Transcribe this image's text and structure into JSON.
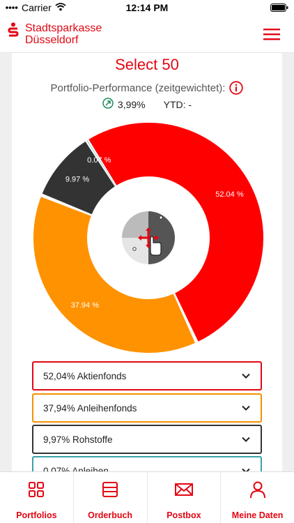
{
  "status_bar": {
    "carrier": "Carrier",
    "time": "12:14 PM"
  },
  "header": {
    "brand_line1": "Stadtsparkasse",
    "brand_line2": "Düsseldorf"
  },
  "fund": {
    "title": "Select 50",
    "performance_label": "Portfolio-Performance (zeitgewichtet):",
    "performance_value": "3,99%",
    "ytd_label": "YTD: -"
  },
  "chart_data": {
    "type": "pie",
    "slices": [
      {
        "label": "Aktienfonds",
        "value": 52.04,
        "display": "52.04 %",
        "color": "#ff0000"
      },
      {
        "label": "Anleihenfonds",
        "value": 37.94,
        "display": "37.94 %",
        "color": "#ff9200"
      },
      {
        "label": "Rohstoffe",
        "value": 9.97,
        "display": "9.97 %",
        "color": "#333333"
      },
      {
        "label": "Anleihen",
        "value": 0.07,
        "display": "0.07 %",
        "color": "#27a3a8"
      }
    ]
  },
  "legend": [
    {
      "text": "52,04% Aktienfonds",
      "color": "#e30613"
    },
    {
      "text": "37,94% Anleihenfonds",
      "color": "#f39200"
    },
    {
      "text": "9,97% Rohstoffe",
      "color": "#333333"
    },
    {
      "text": "0,07% Anleihen",
      "color": "#3aa0a6"
    }
  ],
  "tabs": [
    {
      "label": "Portfolios",
      "icon": "grid-icon"
    },
    {
      "label": "Orderbuch",
      "icon": "orderbook-icon"
    },
    {
      "label": "Postbox",
      "icon": "envelope-icon"
    },
    {
      "label": "Meine Daten",
      "icon": "person-icon"
    }
  ],
  "colors": {
    "accent": "#e30613",
    "positive": "#1a8a5a"
  }
}
